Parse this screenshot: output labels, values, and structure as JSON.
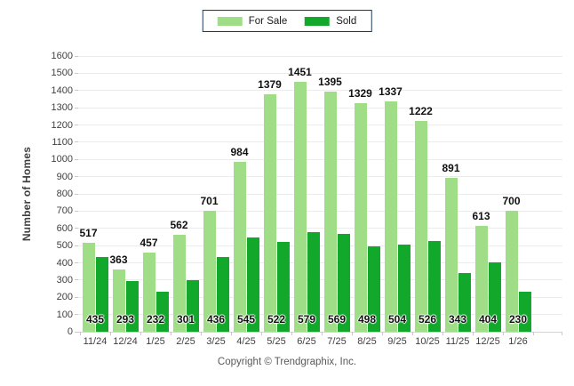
{
  "legend": {
    "border_color": "#1b3a5e"
  },
  "footer": {
    "copyright": "Copyright © Trendgraphix, Inc."
  },
  "chart_data": {
    "type": "bar",
    "title": "",
    "xlabel": "",
    "ylabel": "Number of Homes",
    "ylim": [
      0,
      1600
    ],
    "ytick_step": 100,
    "grid": true,
    "legend_position": "top-center",
    "categories": [
      "11/24",
      "12/24",
      "1/25",
      "2/25",
      "3/25",
      "4/25",
      "5/25",
      "6/25",
      "7/25",
      "8/25",
      "9/25",
      "10/25",
      "11/25",
      "12/25",
      "1/26"
    ],
    "series": [
      {
        "name": "For Sale",
        "color": "#9fdd87",
        "values": [
          517,
          363,
          457,
          562,
          701,
          984,
          1379,
          1451,
          1395,
          1329,
          1337,
          1222,
          891,
          613,
          700
        ]
      },
      {
        "name": "Sold",
        "color": "#12a82b",
        "values": [
          435,
          293,
          232,
          301,
          436,
          545,
          522,
          579,
          569,
          498,
          504,
          526,
          343,
          404,
          230
        ]
      }
    ]
  }
}
